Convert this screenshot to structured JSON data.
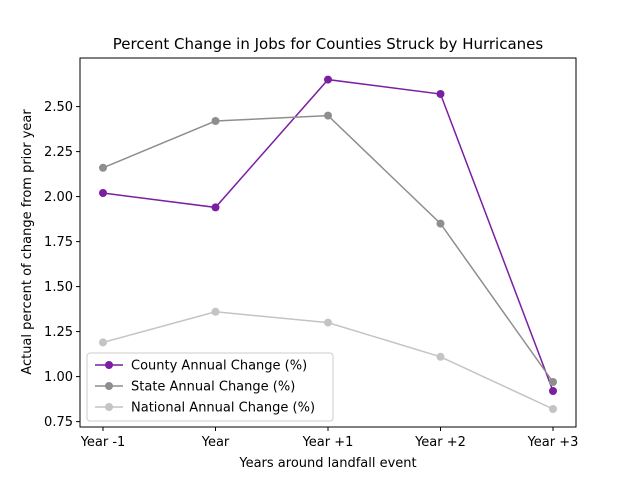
{
  "chart_data": {
    "type": "line",
    "title": "Percent Change in Jobs for Counties Struck by Hurricanes",
    "xlabel": "Years around landfall event",
    "ylabel": "Actual percent of change from prior year",
    "categories": [
      "Year -1",
      "Year",
      "Year +1",
      "Year +2",
      "Year +3"
    ],
    "ylim": [
      0.72,
      2.77
    ],
    "yticks": [
      0.75,
      1.0,
      1.25,
      1.5,
      1.75,
      2.0,
      2.25,
      2.5
    ],
    "ytick_labels": [
      "0.75",
      "1.00",
      "1.25",
      "1.50",
      "1.75",
      "2.00",
      "2.25",
      "2.50"
    ],
    "grid": false,
    "legend_position": "lower-left",
    "series": [
      {
        "name": "County Annual Change (%)",
        "color": "#7B1FA2",
        "values": [
          2.02,
          1.94,
          2.65,
          2.57,
          0.92
        ]
      },
      {
        "name": "State Annual Change (%)",
        "color": "#8E8E8E",
        "values": [
          2.16,
          2.42,
          2.45,
          1.85,
          0.97
        ]
      },
      {
        "name": "National Annual Change (%)",
        "color": "#C4C4C4",
        "values": [
          1.19,
          1.36,
          1.3,
          1.11,
          0.82
        ]
      }
    ]
  }
}
